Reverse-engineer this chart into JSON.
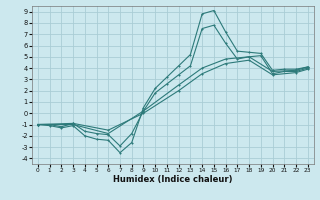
{
  "xlabel": "Humidex (Indice chaleur)",
  "background_color": "#cce8ee",
  "grid_color": "#aacdd5",
  "line_color": "#2d7a7a",
  "xlim": [
    -0.5,
    23.5
  ],
  "ylim": [
    -4.5,
    9.5
  ],
  "xticks": [
    0,
    1,
    2,
    3,
    4,
    5,
    6,
    7,
    8,
    9,
    10,
    11,
    12,
    13,
    14,
    15,
    16,
    17,
    18,
    19,
    20,
    21,
    22,
    23
  ],
  "yticks": [
    -4,
    -3,
    -2,
    -1,
    0,
    1,
    2,
    3,
    4,
    5,
    6,
    7,
    8,
    9
  ],
  "curve1_x": [
    0,
    1,
    2,
    3,
    4,
    5,
    6,
    7,
    8,
    9,
    10,
    11,
    12,
    13,
    14,
    15,
    16,
    17,
    18,
    19,
    20,
    21,
    22,
    23
  ],
  "curve1_y": [
    -1.0,
    -1.1,
    -1.3,
    -1.1,
    -2.0,
    -2.3,
    -2.4,
    -3.5,
    -2.6,
    0.5,
    2.2,
    3.2,
    4.2,
    5.2,
    8.8,
    9.1,
    7.2,
    5.5,
    5.4,
    5.3,
    3.8,
    3.9,
    3.9,
    4.1
  ],
  "curve2_x": [
    0,
    1,
    2,
    3,
    4,
    5,
    6,
    7,
    8,
    9,
    10,
    11,
    12,
    13,
    14,
    15,
    16,
    17,
    18,
    19,
    20,
    21,
    22,
    23
  ],
  "curve2_y": [
    -1.0,
    -1.0,
    -1.2,
    -0.9,
    -1.6,
    -1.8,
    -1.9,
    -2.9,
    -1.8,
    0.2,
    1.8,
    2.6,
    3.4,
    4.2,
    7.5,
    7.8,
    6.2,
    4.8,
    5.0,
    5.1,
    3.5,
    3.7,
    3.7,
    4.0
  ],
  "curve3_x": [
    0,
    3,
    6,
    9,
    12,
    14,
    16,
    18,
    20,
    22,
    23
  ],
  "curve3_y": [
    -1.0,
    -1.0,
    -1.8,
    0.2,
    2.5,
    4.0,
    4.8,
    5.0,
    3.7,
    3.8,
    4.1
  ],
  "curve4_x": [
    0,
    3,
    6,
    9,
    12,
    14,
    16,
    18,
    20,
    22,
    23
  ],
  "curve4_y": [
    -1.0,
    -0.9,
    -1.5,
    0.0,
    2.0,
    3.5,
    4.4,
    4.7,
    3.4,
    3.6,
    3.9
  ]
}
